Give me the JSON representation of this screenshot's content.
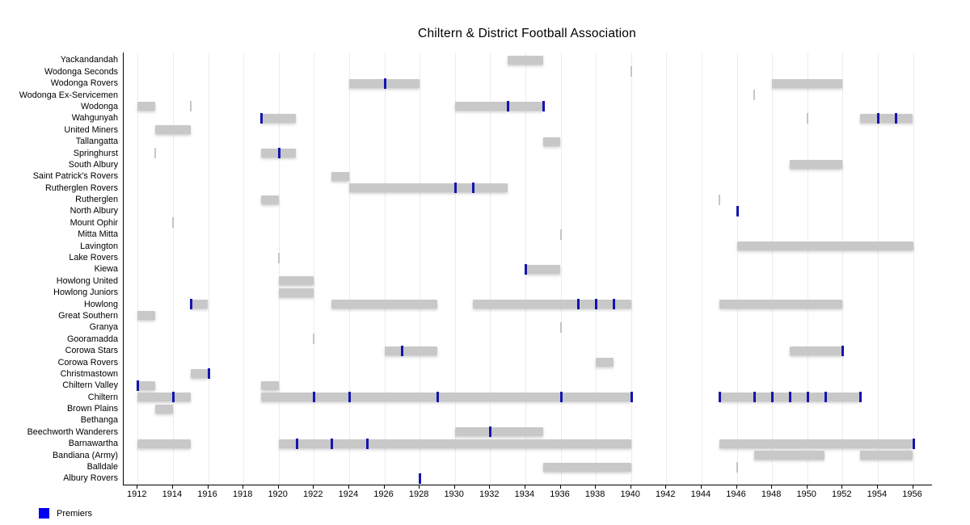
{
  "title": "Chiltern & District Football Association",
  "legend": {
    "premiers_label": "Premiers"
  },
  "chart_data": {
    "type": "gantt",
    "title": "Chiltern & District Football Association",
    "x_axis": {
      "ticks": [
        1912,
        1914,
        1916,
        1918,
        1920,
        1922,
        1924,
        1926,
        1928,
        1930,
        1932,
        1934,
        1936,
        1938,
        1940,
        1942,
        1944,
        1946,
        1948,
        1950,
        1952,
        1954,
        1956
      ],
      "range": [
        1911,
        1957
      ]
    },
    "legend": [
      {
        "label": "Premiers",
        "color": "#0202ef"
      }
    ],
    "colors": {
      "bar": "#c8c8c8",
      "single_year_mark": "#b4b4b4",
      "premiers_tick": "#1515b0",
      "legend_premiers": "#0202ef",
      "gridline": "#ececec",
      "axis": "#000000"
    },
    "clubs": [
      {
        "name": "Yackandandah",
        "bars": [
          [
            1933,
            1935
          ]
        ],
        "marks": [],
        "premiers": []
      },
      {
        "name": "Wodonga Seconds",
        "bars": [],
        "marks": [
          1940
        ],
        "premiers": []
      },
      {
        "name": "Wodonga Rovers",
        "bars": [
          [
            1924,
            1928
          ],
          [
            1948,
            1952
          ]
        ],
        "marks": [],
        "premiers": [
          1926
        ]
      },
      {
        "name": "Wodonga Ex-Servicemen",
        "bars": [],
        "marks": [
          1947
        ],
        "premiers": []
      },
      {
        "name": "Wodonga",
        "bars": [
          [
            1912,
            1913
          ],
          [
            1930,
            1935
          ]
        ],
        "marks": [
          1915
        ],
        "premiers": [
          1933,
          1935
        ]
      },
      {
        "name": "Wahgunyah",
        "bars": [
          [
            1919,
            1921
          ],
          [
            1953,
            1956
          ]
        ],
        "marks": [
          1950
        ],
        "premiers": [
          1919,
          1954,
          1955
        ]
      },
      {
        "name": "United Miners",
        "bars": [
          [
            1913,
            1915
          ]
        ],
        "marks": [],
        "premiers": []
      },
      {
        "name": "Tallangatta",
        "bars": [
          [
            1935,
            1936
          ]
        ],
        "marks": [],
        "premiers": []
      },
      {
        "name": "Springhurst",
        "bars": [
          [
            1919,
            1921
          ]
        ],
        "marks": [
          1913
        ],
        "premiers": [
          1920
        ]
      },
      {
        "name": "South Albury",
        "bars": [
          [
            1949,
            1952
          ]
        ],
        "marks": [],
        "premiers": []
      },
      {
        "name": "Saint Patrick's Rovers",
        "bars": [
          [
            1923,
            1924
          ]
        ],
        "marks": [],
        "premiers": []
      },
      {
        "name": "Rutherglen Rovers",
        "bars": [
          [
            1924,
            1933
          ]
        ],
        "marks": [],
        "premiers": [
          1930,
          1931
        ]
      },
      {
        "name": "Rutherglen",
        "bars": [
          [
            1919,
            1920
          ]
        ],
        "marks": [
          1945
        ],
        "premiers": []
      },
      {
        "name": "North Albury",
        "bars": [],
        "marks": [],
        "premiers": [
          1946
        ]
      },
      {
        "name": "Mount Ophir",
        "bars": [],
        "marks": [
          1914
        ],
        "premiers": []
      },
      {
        "name": "Mitta Mitta",
        "bars": [],
        "marks": [
          1936
        ],
        "premiers": []
      },
      {
        "name": "Lavington",
        "bars": [
          [
            1946,
            1956
          ]
        ],
        "marks": [],
        "premiers": []
      },
      {
        "name": "Lake Rovers",
        "bars": [],
        "marks": [
          1920
        ],
        "premiers": []
      },
      {
        "name": "Kiewa",
        "bars": [
          [
            1934,
            1936
          ]
        ],
        "marks": [],
        "premiers": [
          1934
        ]
      },
      {
        "name": "Howlong United",
        "bars": [
          [
            1920,
            1922
          ]
        ],
        "marks": [],
        "premiers": []
      },
      {
        "name": "Howlong Juniors",
        "bars": [
          [
            1920,
            1922
          ]
        ],
        "marks": [],
        "premiers": []
      },
      {
        "name": "Howlong",
        "bars": [
          [
            1915,
            1916
          ],
          [
            1923,
            1929
          ],
          [
            1931,
            1940
          ],
          [
            1945,
            1952
          ]
        ],
        "marks": [],
        "premiers": [
          1915,
          1937,
          1938,
          1939
        ]
      },
      {
        "name": "Great Southern",
        "bars": [
          [
            1912,
            1913
          ]
        ],
        "marks": [],
        "premiers": []
      },
      {
        "name": "Granya",
        "bars": [],
        "marks": [
          1936
        ],
        "premiers": []
      },
      {
        "name": "Gooramadda",
        "bars": [],
        "marks": [
          1922
        ],
        "premiers": []
      },
      {
        "name": "Corowa Stars",
        "bars": [
          [
            1926,
            1929
          ],
          [
            1949,
            1952
          ]
        ],
        "marks": [],
        "premiers": [
          1927,
          1952
        ]
      },
      {
        "name": "Corowa Rovers",
        "bars": [
          [
            1938,
            1939
          ]
        ],
        "marks": [],
        "premiers": []
      },
      {
        "name": "Christmastown",
        "bars": [
          [
            1915,
            1916
          ]
        ],
        "marks": [],
        "premiers": [
          1916
        ]
      },
      {
        "name": "Chiltern Valley",
        "bars": [
          [
            1912,
            1913
          ],
          [
            1919,
            1920
          ]
        ],
        "marks": [],
        "premiers": [
          1912
        ]
      },
      {
        "name": "Chiltern",
        "bars": [
          [
            1912,
            1915
          ],
          [
            1919,
            1940
          ],
          [
            1945,
            1953
          ]
        ],
        "marks": [],
        "premiers": [
          1914,
          1922,
          1924,
          1929,
          1936,
          1940,
          1945,
          1947,
          1948,
          1949,
          1950,
          1951,
          1953
        ]
      },
      {
        "name": "Brown Plains",
        "bars": [
          [
            1913,
            1914
          ]
        ],
        "marks": [],
        "premiers": []
      },
      {
        "name": "Bethanga",
        "bars": [],
        "marks": [],
        "premiers": []
      },
      {
        "name": "Beechworth Wanderers",
        "bars": [
          [
            1930,
            1935
          ]
        ],
        "marks": [],
        "premiers": [
          1932
        ]
      },
      {
        "name": "Barnawartha",
        "bars": [
          [
            1912,
            1915
          ],
          [
            1920,
            1940
          ],
          [
            1945,
            1956
          ]
        ],
        "marks": [],
        "premiers": [
          1921,
          1923,
          1925,
          1956
        ]
      },
      {
        "name": "Bandiana (Army)",
        "bars": [
          [
            1947,
            1951
          ],
          [
            1953,
            1956
          ]
        ],
        "marks": [],
        "premiers": []
      },
      {
        "name": "Balldale",
        "bars": [
          [
            1935,
            1940
          ]
        ],
        "marks": [
          1946
        ],
        "premiers": []
      },
      {
        "name": "Albury Rovers",
        "bars": [],
        "marks": [],
        "premiers": [
          1928
        ]
      }
    ]
  }
}
